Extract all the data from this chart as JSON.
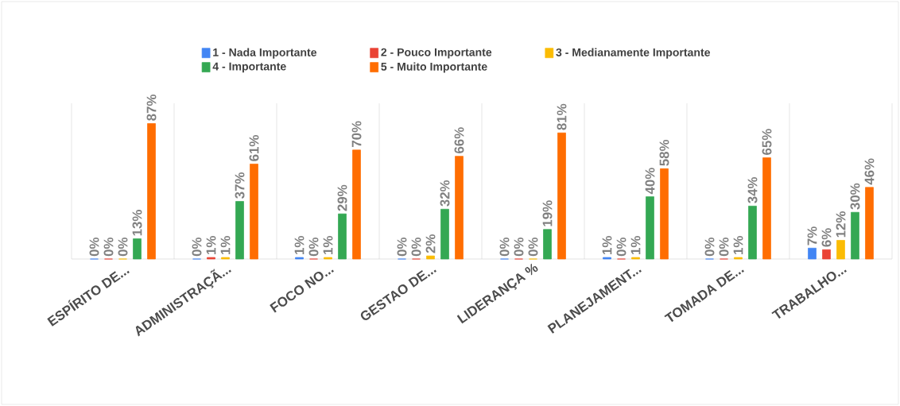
{
  "chart_data": {
    "type": "bar",
    "categories": [
      "ESPÍRITO DE...",
      "ADMINISTRAÇÃ...",
      "FOCO NO...",
      "GESTAO DE...",
      "LIDERANÇA %",
      "PLANEJAMENT...",
      "TOMADA DE...",
      "TRABALHO..."
    ],
    "series": [
      {
        "name": "1 - Nada Importante",
        "color": "#4285f4",
        "values": [
          0,
          0,
          1,
          0,
          0,
          1,
          0,
          7
        ],
        "value_labels": [
          "0%",
          "0%",
          "1%",
          "0%",
          "0%",
          "1%",
          "0%",
          "7%"
        ]
      },
      {
        "name": "2 - Pouco Importante",
        "color": "#ea4335",
        "values": [
          0,
          1,
          0,
          0,
          0,
          0,
          0,
          6
        ],
        "value_labels": [
          "0%",
          "1%",
          "0%",
          "0%",
          "0%",
          "0%",
          "0%",
          "6%"
        ]
      },
      {
        "name": "3 - Medianamente Importante",
        "color": "#fbbc04",
        "values": [
          0,
          1,
          1,
          2,
          0,
          1,
          1,
          12
        ],
        "value_labels": [
          "0%",
          "1%",
          "1%",
          "2%",
          "0%",
          "1%",
          "1%",
          "12%"
        ]
      },
      {
        "name": "4 - Importante",
        "color": "#34a853",
        "values": [
          13,
          37,
          29,
          32,
          19,
          40,
          34,
          30
        ],
        "value_labels": [
          "13%",
          "37%",
          "29%",
          "32%",
          "19%",
          "40%",
          "34%",
          "30%"
        ]
      },
      {
        "name": "5 - Muito Importante",
        "color": "#ff6d01",
        "values": [
          87,
          61,
          70,
          66,
          81,
          58,
          65,
          46
        ],
        "value_labels": [
          "87%",
          "61%",
          "70%",
          "66%",
          "81%",
          "58%",
          "65%",
          "46%"
        ]
      }
    ],
    "ylim": [
      0,
      100
    ],
    "tick_labels": "x",
    "grid": "x",
    "legend": "top"
  }
}
